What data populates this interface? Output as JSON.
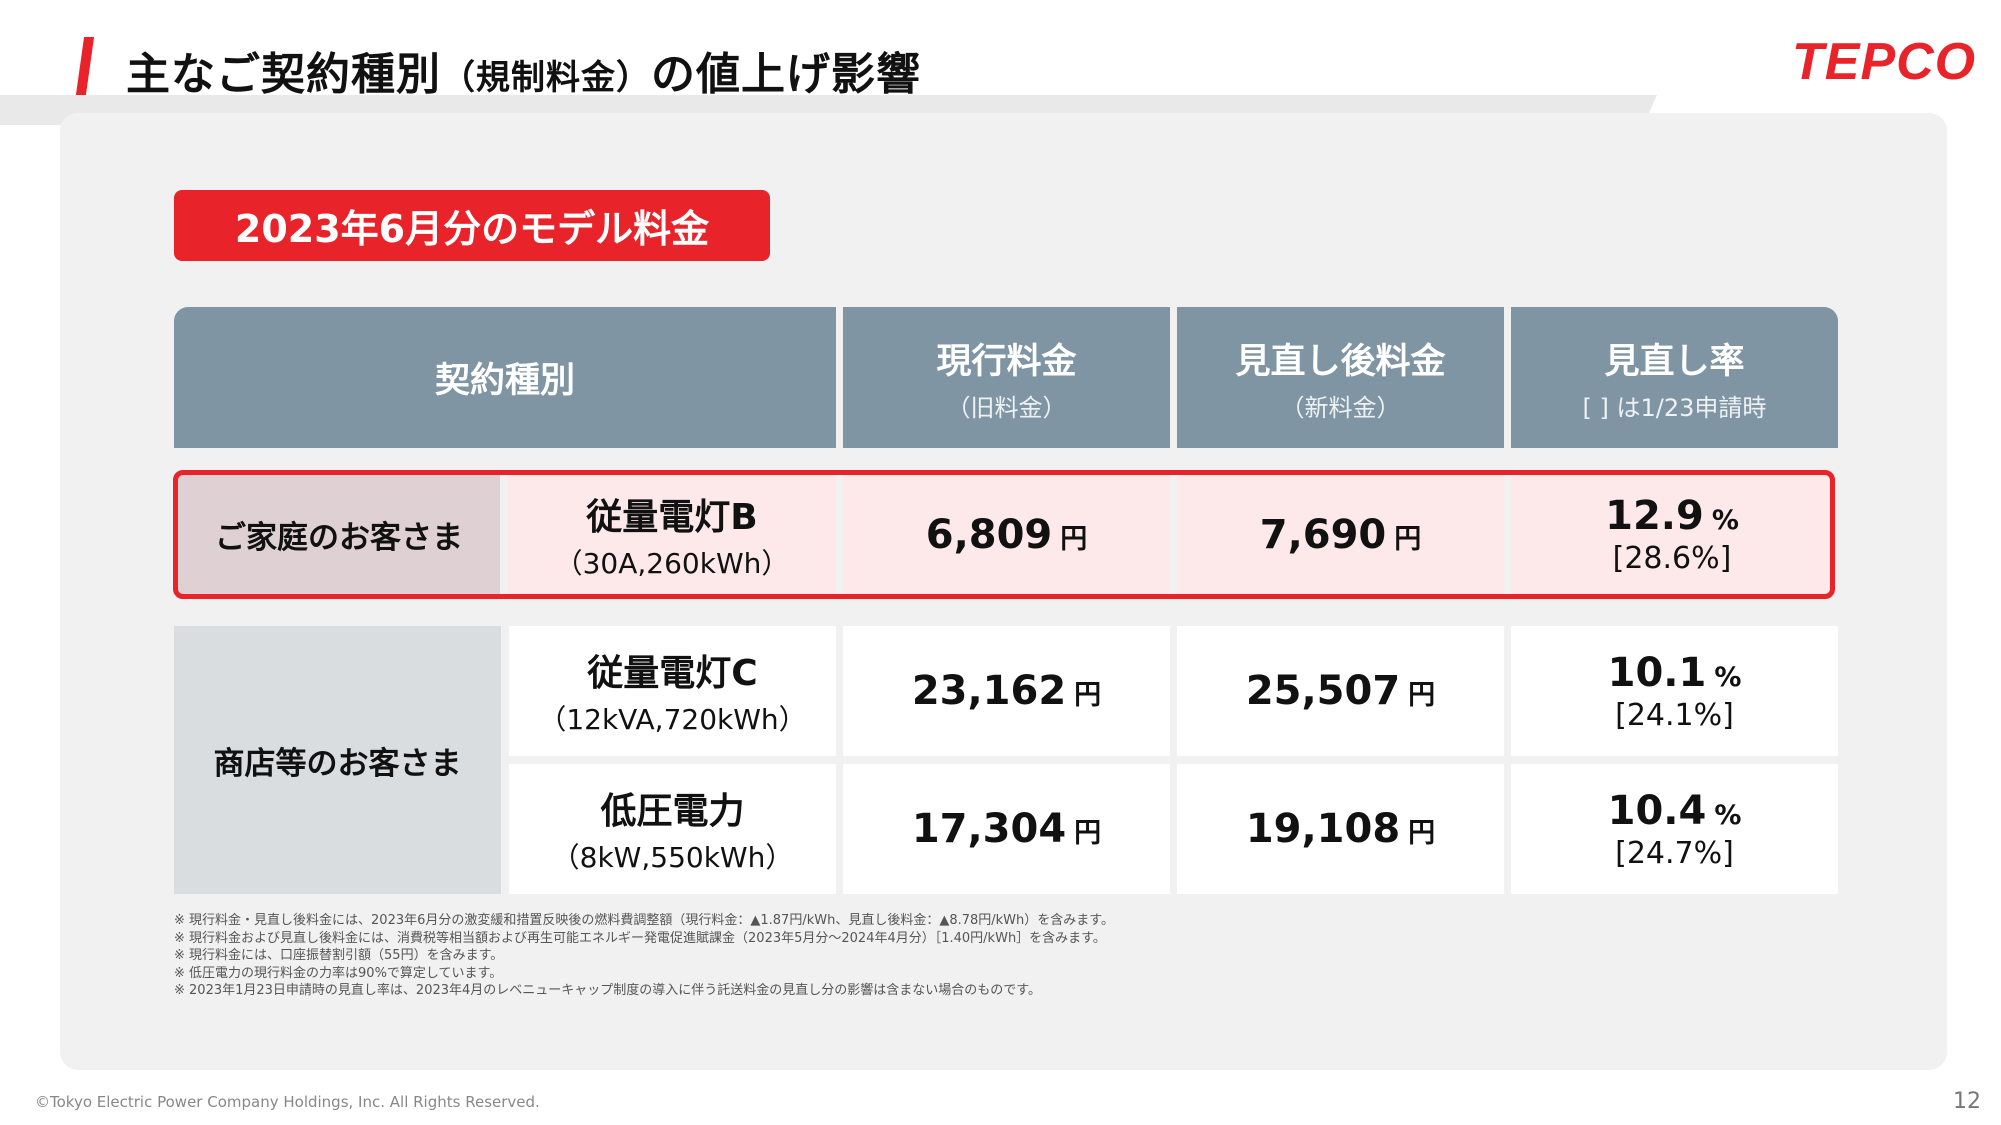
{
  "header": {
    "title_main": "主なご契約種別",
    "title_paren": "（規制料金）",
    "title_end": "の値上げ影響",
    "logo": "TEPCO"
  },
  "badge": "2023年6月分のモデル料金",
  "table": {
    "headers": [
      {
        "main": "契約種別",
        "sub": ""
      },
      {
        "main": "現行料金",
        "sub": "（旧料金）"
      },
      {
        "main": "見直し後料金",
        "sub": "（新料金）"
      },
      {
        "main": "見直し率",
        "sub": "[ ] は1/23申請時"
      }
    ],
    "categories": {
      "home": "ご家庭のお客さま",
      "shop": "商店等のお客さま"
    },
    "currency_unit": "円",
    "percent_unit": "%",
    "rows": [
      {
        "plan": "従量電灯B",
        "plan_sub": "（30A,260kWh）",
        "current": "6,809",
        "new": "7,690",
        "rate": "12.9",
        "prev_rate": "[28.6%]"
      },
      {
        "plan": "従量電灯C",
        "plan_sub": "（12kVA,720kWh）",
        "current": "23,162",
        "new": "25,507",
        "rate": "10.1",
        "prev_rate": "[24.1%]"
      },
      {
        "plan": "低圧電力",
        "plan_sub": "（8kW,550kWh）",
        "current": "17,304",
        "new": "19,108",
        "rate": "10.4",
        "prev_rate": "[24.7%]"
      }
    ]
  },
  "notes": [
    "※ 現行料金・見直し後料金には、2023年6月分の激変緩和措置反映後の燃料費調整額（現行料金：▲1.87円/kWh、見直し後料金：▲8.78円/kWh）を含みます。",
    "※ 現行料金および見直し後料金には、消費税等相当額および再生可能エネルギー発電促進賦課金（2023年5月分～2024年4月分）［1.40円/kWh］を含みます。",
    "※ 現行料金には、口座振替割引額（55円）を含みます。",
    "※ 低圧電力の現行料金の力率は90%で算定しています。",
    "※ 2023年1月23日申請時の見直し率は、2023年4月のレベニューキャップ制度の導入に伴う託送料金の見直し分の影響は含まない場合のものです。"
  ],
  "footer": "©Tokyo Electric Power Company Holdings, Inc. All Rights Reserved.",
  "page_number": "12",
  "colors": {
    "accent": "#e8232a",
    "header_cell": "#7f95a3",
    "highlight_row": "#fde8ea",
    "panel": "#f1f1f1"
  }
}
